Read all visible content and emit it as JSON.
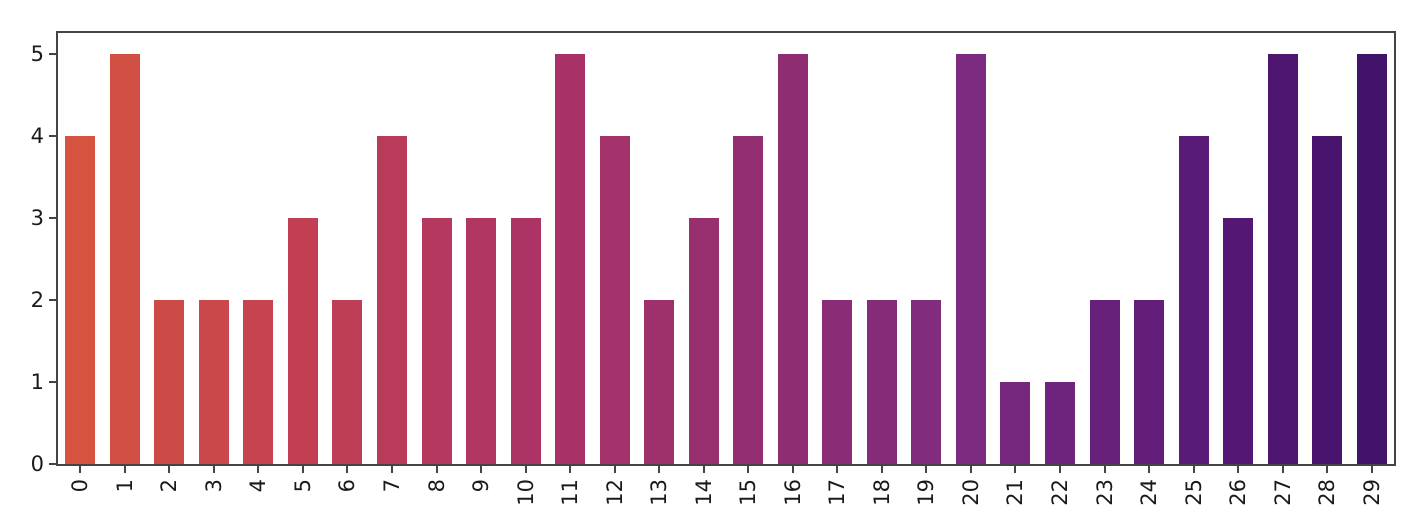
{
  "chart_data": {
    "type": "bar",
    "title": "",
    "xlabel": "",
    "ylabel": "",
    "categories": [
      "0",
      "1",
      "2",
      "3",
      "4",
      "5",
      "6",
      "7",
      "8",
      "9",
      "10",
      "11",
      "12",
      "13",
      "14",
      "15",
      "16",
      "17",
      "18",
      "19",
      "20",
      "21",
      "22",
      "23",
      "24",
      "25",
      "26",
      "27",
      "28",
      "29"
    ],
    "values": [
      4,
      5,
      2,
      2,
      2,
      3,
      2,
      4,
      3,
      3,
      3,
      5,
      4,
      2,
      3,
      4,
      5,
      2,
      2,
      2,
      5,
      1,
      1,
      2,
      2,
      4,
      3,
      5,
      4,
      5
    ],
    "bar_colors": [
      "#d5533f",
      "#d14f43",
      "#cd4b47",
      "#ca474b",
      "#c6434f",
      "#c23f53",
      "#be3d57",
      "#b93b5a",
      "#b5385e",
      "#b13661",
      "#ac3465",
      "#a83268",
      "#a3316a",
      "#9e306c",
      "#982f6e",
      "#932e70",
      "#8e2d72",
      "#8a2d76",
      "#852c79",
      "#812c7d",
      "#7c2b80",
      "#75287e",
      "#6e247c",
      "#68217b",
      "#611d79",
      "#5a1a77",
      "#541874",
      "#4e1671",
      "#48146e",
      "#41136b"
    ],
    "yticks": [
      0,
      1,
      2,
      3,
      4,
      5
    ],
    "ylim": [
      0,
      5.25
    ],
    "x_tick_rotation": 90,
    "grid": false,
    "legend": false,
    "bar_width_fraction": 0.675,
    "axis_color": "#444444",
    "text_color": "#1a1a1a",
    "background_color": "#ffffff"
  }
}
